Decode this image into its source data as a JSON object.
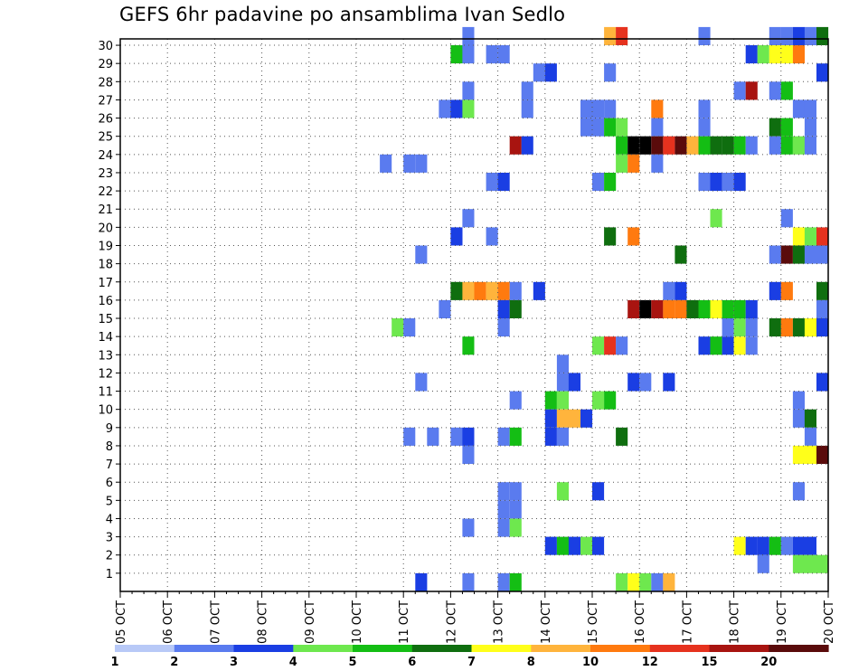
{
  "chart_data": {
    "type": "heatmap",
    "title": "GEFS 6hr padavine po ansamblima Ivan Sedlo",
    "x_tick_labels": [
      "05 OCT",
      "06 OCT",
      "07 OCT",
      "08 OCT",
      "09 OCT",
      "10 OCT",
      "11 OCT",
      "12 OCT",
      "13 OCT",
      "14 OCT",
      "15 OCT",
      "16 OCT",
      "17 OCT",
      "18 OCT",
      "19 OCT",
      "20 OCT"
    ],
    "y_tick_labels": [
      "1",
      "2",
      "3",
      "4",
      "5",
      "6",
      "7",
      "8",
      "9",
      "10",
      "11",
      "12",
      "13",
      "14",
      "15",
      "16",
      "17",
      "18",
      "19",
      "20",
      "21",
      "22",
      "23",
      "24",
      "25",
      "26",
      "27",
      "28",
      "29",
      "30"
    ],
    "xlim_days": [
      0,
      15
    ],
    "ylim_members": [
      0,
      30
    ],
    "time_step_hours": 6,
    "grid": true,
    "colorbar": {
      "labels": [
        "1",
        "2",
        "3",
        "4",
        "5",
        "6",
        "7",
        "8",
        "10",
        "12",
        "15",
        "20"
      ],
      "colors": [
        "#b8c9f7",
        "#5a7bef",
        "#1a3ee3",
        "#6ee84e",
        "#14be14",
        "#0f6e0f",
        "#ffff1a",
        "#ffb43c",
        "#ff7a0f",
        "#e6321e",
        "#a81410",
        "#5a0b0b"
      ]
    },
    "cells": [
      [
        7.5,
        30,
        1
      ],
      [
        10.5,
        30,
        7
      ],
      [
        10.75,
        30,
        9
      ],
      [
        12.5,
        30,
        1
      ],
      [
        14,
        30,
        1
      ],
      [
        14.25,
        30,
        1
      ],
      [
        14.5,
        30,
        2
      ],
      [
        14.75,
        30,
        1
      ],
      [
        15,
        30,
        5
      ],
      [
        7.25,
        29,
        4
      ],
      [
        7.5,
        29,
        1
      ],
      [
        8,
        29,
        1
      ],
      [
        8.25,
        29,
        1
      ],
      [
        13.5,
        29,
        2
      ],
      [
        13.75,
        29,
        3
      ],
      [
        14,
        29,
        6
      ],
      [
        14.25,
        29,
        6
      ],
      [
        14.5,
        29,
        8
      ],
      [
        9,
        28,
        1
      ],
      [
        9.25,
        28,
        2
      ],
      [
        10.5,
        28,
        1
      ],
      [
        15,
        28,
        2
      ],
      [
        7.5,
        27,
        1
      ],
      [
        8.75,
        27,
        1
      ],
      [
        13.25,
        27,
        1
      ],
      [
        13.5,
        27,
        10
      ],
      [
        14,
        27,
        1
      ],
      [
        14.25,
        27,
        4
      ],
      [
        7,
        26,
        1
      ],
      [
        7.25,
        26,
        2
      ],
      [
        7.5,
        26,
        3
      ],
      [
        8.75,
        26,
        1
      ],
      [
        10,
        26,
        1
      ],
      [
        10.25,
        26,
        1
      ],
      [
        10.5,
        26,
        1
      ],
      [
        11.5,
        26,
        8
      ],
      [
        12.5,
        26,
        1
      ],
      [
        14.5,
        26,
        1
      ],
      [
        14.75,
        26,
        1
      ],
      [
        10,
        25,
        1
      ],
      [
        10.25,
        25,
        1
      ],
      [
        10.5,
        25,
        4
      ],
      [
        10.75,
        25,
        3
      ],
      [
        11.5,
        25,
        1
      ],
      [
        12.5,
        25,
        1
      ],
      [
        14,
        25,
        5
      ],
      [
        14.25,
        25,
        4
      ],
      [
        14.75,
        25,
        1
      ],
      [
        8.5,
        24,
        10
      ],
      [
        8.75,
        24,
        2
      ],
      [
        10.75,
        24,
        4
      ],
      [
        11,
        24,
        12
      ],
      [
        11.25,
        24,
        12
      ],
      [
        11.5,
        24,
        11
      ],
      [
        11.75,
        24,
        9
      ],
      [
        12,
        24,
        11
      ],
      [
        12.25,
        24,
        7
      ],
      [
        12.5,
        24,
        4
      ],
      [
        12.75,
        24,
        5
      ],
      [
        13,
        24,
        5
      ],
      [
        13.25,
        24,
        4
      ],
      [
        13.5,
        24,
        1
      ],
      [
        14,
        24,
        1
      ],
      [
        14.25,
        24,
        4
      ],
      [
        14.5,
        24,
        3
      ],
      [
        14.75,
        24,
        1
      ],
      [
        5.75,
        23,
        1
      ],
      [
        6.25,
        23,
        1
      ],
      [
        6.5,
        23,
        1
      ],
      [
        10.75,
        23,
        3
      ],
      [
        11,
        23,
        8
      ],
      [
        11.5,
        23,
        1
      ],
      [
        8,
        22,
        1
      ],
      [
        8.25,
        22,
        2
      ],
      [
        10.25,
        22,
        1
      ],
      [
        10.5,
        22,
        4
      ],
      [
        12.5,
        22,
        1
      ],
      [
        12.75,
        22,
        2
      ],
      [
        13,
        22,
        1
      ],
      [
        13.25,
        22,
        2
      ],
      [
        7.5,
        20,
        1
      ],
      [
        12.75,
        20,
        3
      ],
      [
        14.25,
        20,
        1
      ],
      [
        7.25,
        19,
        2
      ],
      [
        8,
        19,
        1
      ],
      [
        10.5,
        19,
        5
      ],
      [
        11,
        19,
        8
      ],
      [
        14.5,
        19,
        6
      ],
      [
        14.75,
        19,
        3
      ],
      [
        15,
        19,
        9
      ],
      [
        6.5,
        18,
        1
      ],
      [
        12,
        18,
        5
      ],
      [
        14,
        18,
        1
      ],
      [
        14.25,
        18,
        11
      ],
      [
        14.5,
        18,
        5
      ],
      [
        14.75,
        18,
        1
      ],
      [
        15,
        18,
        1
      ],
      [
        7.25,
        16,
        5
      ],
      [
        7.5,
        16,
        7
      ],
      [
        7.75,
        16,
        8
      ],
      [
        8,
        16,
        7
      ],
      [
        8.25,
        16,
        8
      ],
      [
        8.5,
        16,
        1
      ],
      [
        9,
        16,
        2
      ],
      [
        11.75,
        16,
        1
      ],
      [
        12,
        16,
        2
      ],
      [
        14,
        16,
        2
      ],
      [
        14.25,
        16,
        8
      ],
      [
        15,
        16,
        5
      ],
      [
        7,
        15,
        1
      ],
      [
        8.25,
        15,
        2
      ],
      [
        8.5,
        15,
        5
      ],
      [
        11,
        15,
        10
      ],
      [
        11.25,
        15,
        12
      ],
      [
        11.5,
        15,
        10
      ],
      [
        11.75,
        15,
        8
      ],
      [
        12,
        15,
        8
      ],
      [
        12.25,
        15,
        5
      ],
      [
        12.5,
        15,
        4
      ],
      [
        12.75,
        15,
        6
      ],
      [
        13,
        15,
        4
      ],
      [
        13.25,
        15,
        4
      ],
      [
        13.5,
        15,
        2
      ],
      [
        15,
        15,
        1
      ],
      [
        6,
        14,
        3
      ],
      [
        6.25,
        14,
        1
      ],
      [
        8.25,
        14,
        1
      ],
      [
        13,
        14,
        1
      ],
      [
        13.25,
        14,
        3
      ],
      [
        13.5,
        14,
        1
      ],
      [
        14,
        14,
        5
      ],
      [
        14.25,
        14,
        8
      ],
      [
        14.5,
        14,
        5
      ],
      [
        14.75,
        14,
        6
      ],
      [
        15,
        14,
        2
      ],
      [
        7.5,
        13,
        4
      ],
      [
        10.25,
        13,
        3
      ],
      [
        10.5,
        13,
        9
      ],
      [
        10.75,
        13,
        1
      ],
      [
        12.5,
        13,
        2
      ],
      [
        12.75,
        13,
        4
      ],
      [
        13,
        13,
        2
      ],
      [
        13.25,
        13,
        6
      ],
      [
        13.5,
        13,
        1
      ],
      [
        9.5,
        12,
        1
      ],
      [
        6.5,
        11,
        1
      ],
      [
        9.5,
        11,
        1
      ],
      [
        9.75,
        11,
        2
      ],
      [
        11,
        11,
        2
      ],
      [
        11.25,
        11,
        1
      ],
      [
        11.75,
        11,
        2
      ],
      [
        15,
        11,
        2
      ],
      [
        8.5,
        10,
        1
      ],
      [
        9.25,
        10,
        4
      ],
      [
        9.5,
        10,
        3
      ],
      [
        10.25,
        10,
        3
      ],
      [
        10.5,
        10,
        4
      ],
      [
        14.5,
        10,
        1
      ],
      [
        9.25,
        9,
        2
      ],
      [
        9.5,
        9,
        7
      ],
      [
        9.75,
        9,
        7
      ],
      [
        10,
        9,
        2
      ],
      [
        14.5,
        9,
        1
      ],
      [
        14.75,
        9,
        5
      ],
      [
        6.25,
        8,
        1
      ],
      [
        6.75,
        8,
        1
      ],
      [
        7.25,
        8,
        1
      ],
      [
        7.5,
        8,
        2
      ],
      [
        8.25,
        8,
        1
      ],
      [
        8.5,
        8,
        4
      ],
      [
        9.25,
        8,
        2
      ],
      [
        9.5,
        8,
        1
      ],
      [
        10.75,
        8,
        5
      ],
      [
        14.75,
        8,
        1
      ],
      [
        7.5,
        7,
        1
      ],
      [
        14.5,
        7,
        6
      ],
      [
        14.75,
        7,
        6
      ],
      [
        15,
        7,
        11
      ],
      [
        8.25,
        5,
        1
      ],
      [
        8.5,
        5,
        1
      ],
      [
        9.5,
        5,
        3
      ],
      [
        10.25,
        5,
        2
      ],
      [
        14.5,
        5,
        1
      ],
      [
        8.25,
        4,
        1
      ],
      [
        8.5,
        4,
        1
      ],
      [
        7.5,
        3,
        1
      ],
      [
        8.25,
        3,
        1
      ],
      [
        8.5,
        3,
        3
      ],
      [
        9.25,
        2,
        2
      ],
      [
        9.5,
        2,
        4
      ],
      [
        9.75,
        2,
        2
      ],
      [
        10,
        2,
        3
      ],
      [
        10.25,
        2,
        2
      ],
      [
        13.25,
        2,
        6
      ],
      [
        13.5,
        2,
        2
      ],
      [
        13.75,
        2,
        2
      ],
      [
        14,
        2,
        4
      ],
      [
        14.25,
        2,
        1
      ],
      [
        14.5,
        2,
        2
      ],
      [
        14.75,
        2,
        2
      ],
      [
        13.75,
        1,
        1
      ],
      [
        14.5,
        1,
        3
      ],
      [
        14.75,
        1,
        3
      ],
      [
        15,
        1,
        3
      ],
      [
        6.5,
        0,
        2
      ],
      [
        7.5,
        0,
        1
      ],
      [
        8.25,
        0,
        1
      ],
      [
        8.5,
        0,
        4
      ],
      [
        10.75,
        0,
        3
      ],
      [
        11,
        0,
        6
      ],
      [
        11.25,
        0,
        3
      ],
      [
        11.5,
        0,
        1
      ],
      [
        11.75,
        0,
        7
      ]
    ]
  }
}
